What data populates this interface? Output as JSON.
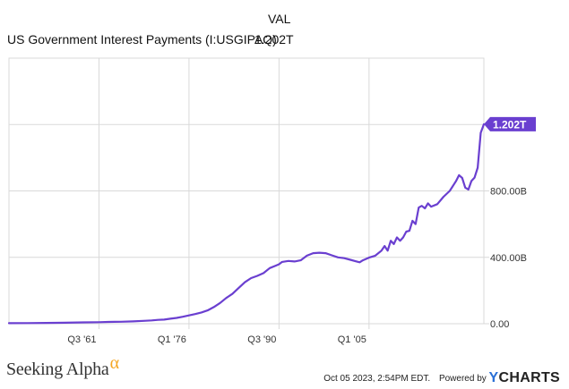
{
  "header": {
    "val_label": "VAL",
    "series_name": "US Government Interest Payments (I:USGIPAQ)",
    "series_value": "1.202T"
  },
  "colors": {
    "line": "#6a3fd0",
    "grid": "#d9d9d9",
    "axis_text": "#333333",
    "tag_bg": "#6a3fd0",
    "tag_text": "#ffffff"
  },
  "chart_data": {
    "type": "line",
    "title": "",
    "xlabel": "",
    "ylabel": "",
    "x_range": [
      1947.0,
      2023.5
    ],
    "ylim": [
      0,
      1600
    ],
    "y_unit": "B",
    "yticks": [
      {
        "value": 0,
        "label": "0.00"
      },
      {
        "value": 400,
        "label": "400.00B"
      },
      {
        "value": 800,
        "label": "800.00B"
      },
      {
        "value": 1200,
        "label": "1.20T"
      }
    ],
    "xticks": [
      {
        "value": 1961.5,
        "label": "Q3 '61"
      },
      {
        "value": 1976.0,
        "label": "Q1 '76"
      },
      {
        "value": 1990.5,
        "label": "Q3 '90"
      },
      {
        "value": 2005.0,
        "label": "Q1 '05"
      }
    ],
    "grid": true,
    "last_value_label": "1.202T",
    "series": [
      {
        "values": [
          [
            1947.0,
            3
          ],
          [
            1950.0,
            4
          ],
          [
            1953.0,
            5
          ],
          [
            1956.0,
            6
          ],
          [
            1959.0,
            8
          ],
          [
            1961.5,
            9
          ],
          [
            1963.0,
            11
          ],
          [
            1965.0,
            12
          ],
          [
            1967.0,
            14
          ],
          [
            1969.0,
            18
          ],
          [
            1970.0,
            20
          ],
          [
            1971.0,
            23
          ],
          [
            1972.0,
            25
          ],
          [
            1973.0,
            30
          ],
          [
            1974.0,
            35
          ],
          [
            1975.0,
            42
          ],
          [
            1976.0,
            50
          ],
          [
            1977.0,
            58
          ],
          [
            1978.0,
            68
          ],
          [
            1979.0,
            80
          ],
          [
            1980.0,
            100
          ],
          [
            1981.0,
            125
          ],
          [
            1982.0,
            155
          ],
          [
            1983.0,
            180
          ],
          [
            1984.0,
            215
          ],
          [
            1985.0,
            250
          ],
          [
            1986.0,
            275
          ],
          [
            1987.0,
            288
          ],
          [
            1988.0,
            305
          ],
          [
            1989.0,
            335
          ],
          [
            1990.0,
            350
          ],
          [
            1990.5,
            358
          ],
          [
            1991.0,
            372
          ],
          [
            1992.0,
            378
          ],
          [
            1993.0,
            375
          ],
          [
            1994.0,
            382
          ],
          [
            1995.0,
            410
          ],
          [
            1996.0,
            425
          ],
          [
            1997.0,
            428
          ],
          [
            1998.0,
            425
          ],
          [
            1999.0,
            412
          ],
          [
            2000.0,
            400
          ],
          [
            2001.0,
            395
          ],
          [
            2002.0,
            385
          ],
          [
            2003.0,
            375
          ],
          [
            2003.5,
            370
          ],
          [
            2004.0,
            382
          ],
          [
            2005.0,
            398
          ],
          [
            2006.0,
            410
          ],
          [
            2007.0,
            440
          ],
          [
            2007.5,
            468
          ],
          [
            2008.0,
            440
          ],
          [
            2008.5,
            500
          ],
          [
            2009.0,
            480
          ],
          [
            2009.5,
            520
          ],
          [
            2010.0,
            500
          ],
          [
            2010.5,
            520
          ],
          [
            2011.0,
            555
          ],
          [
            2011.5,
            560
          ],
          [
            2012.0,
            620
          ],
          [
            2012.5,
            600
          ],
          [
            2013.0,
            700
          ],
          [
            2013.5,
            710
          ],
          [
            2014.0,
            695
          ],
          [
            2014.5,
            725
          ],
          [
            2015.0,
            705
          ],
          [
            2016.0,
            720
          ],
          [
            2017.0,
            765
          ],
          [
            2018.0,
            800
          ],
          [
            2019.0,
            858
          ],
          [
            2019.5,
            895
          ],
          [
            2020.0,
            878
          ],
          [
            2020.5,
            820
          ],
          [
            2021.0,
            808
          ],
          [
            2021.5,
            860
          ],
          [
            2022.0,
            880
          ],
          [
            2022.5,
            940
          ],
          [
            2023.0,
            1150
          ],
          [
            2023.5,
            1202
          ]
        ]
      }
    ]
  },
  "footer": {
    "brand": "Seeking Alpha",
    "brand_symbol": "α",
    "timestamp": "Oct 05 2023, 2:54PM EDT.",
    "powered_by": "Powered by",
    "ycharts_y": "Y",
    "ycharts_rest": "CHARTS"
  }
}
